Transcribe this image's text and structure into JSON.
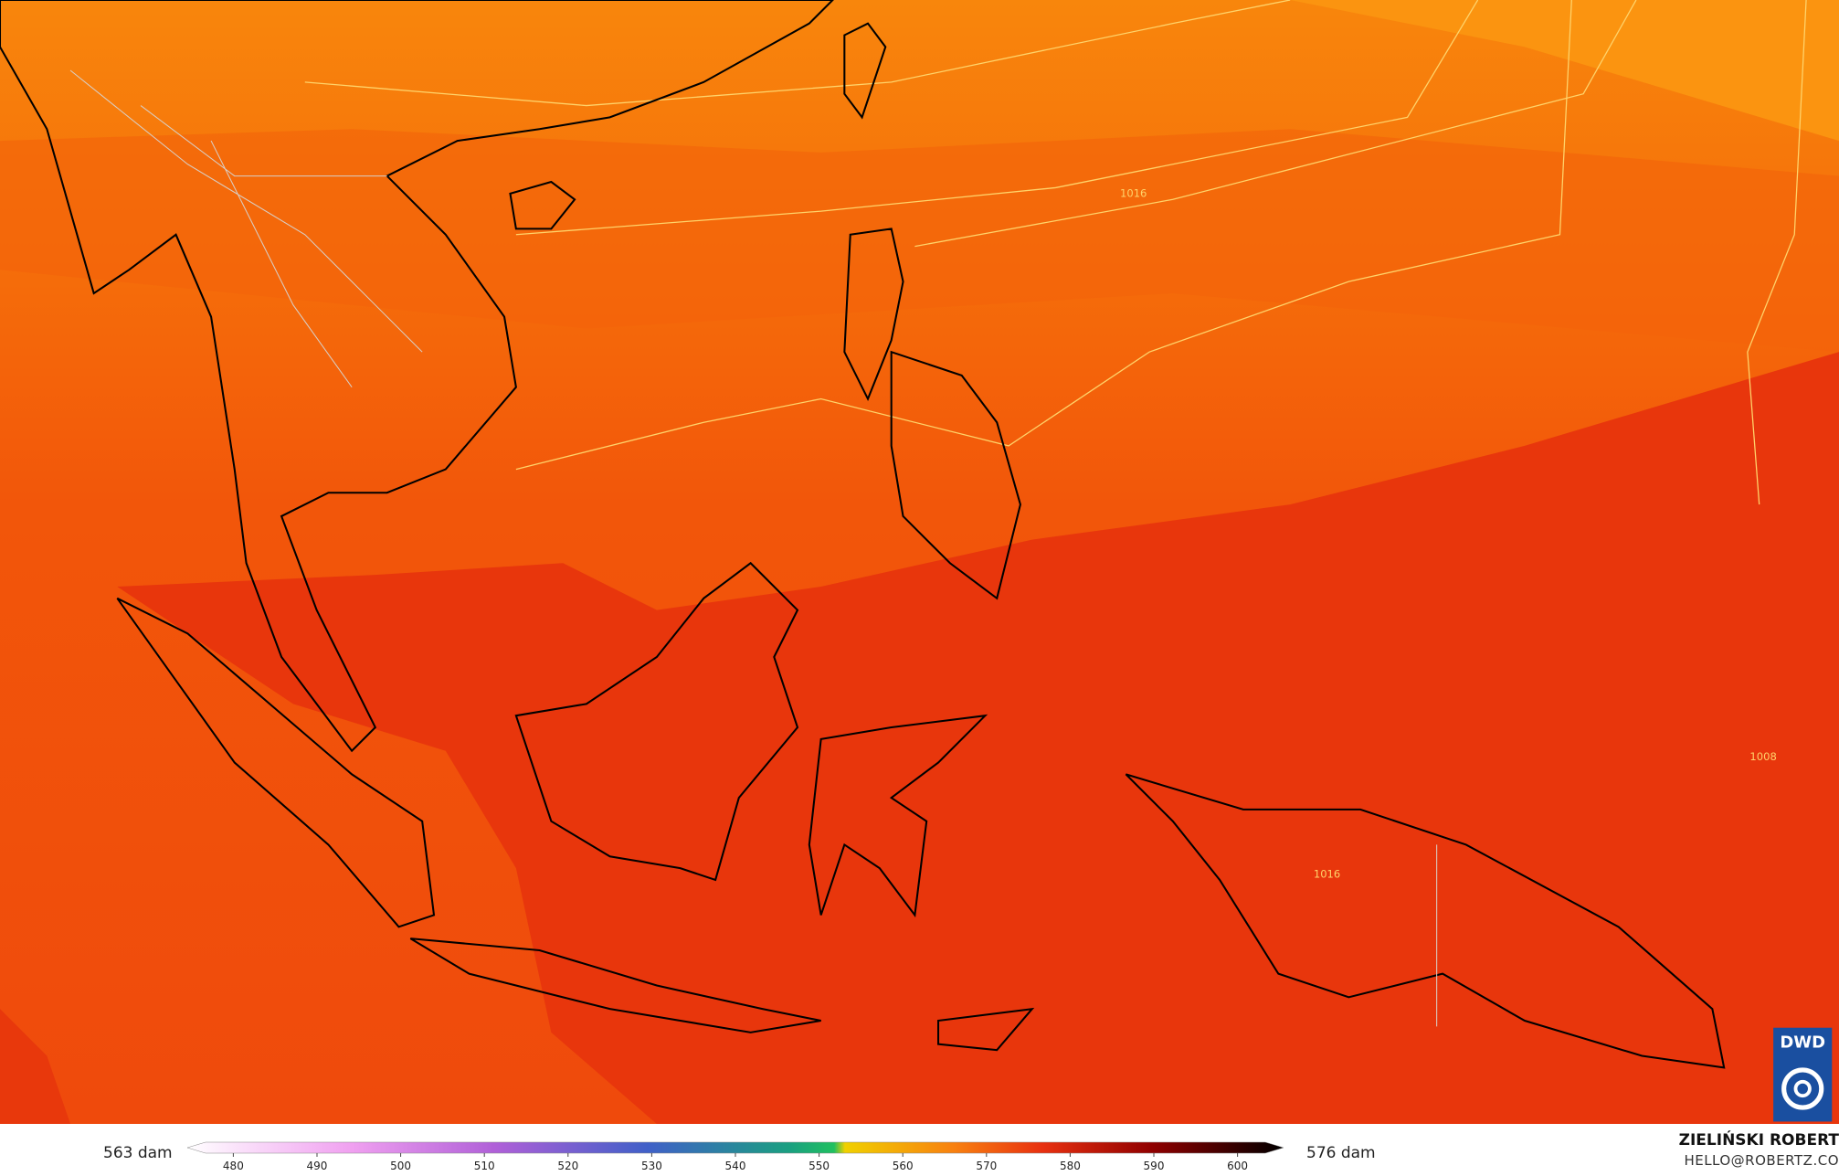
{
  "map": {
    "contour_labels": [
      "1016",
      "1016",
      "1008"
    ],
    "colorbar": {
      "range": [
        474.5,
        605.5
      ],
      "ticks": [
        480,
        490,
        500,
        510,
        520,
        530,
        540,
        550,
        560,
        570,
        580,
        590,
        600
      ]
    },
    "min_label": "563 dam",
    "max_label": "576 dam",
    "author": "ZIELIŃSKI ROBERT",
    "email": "HELLO@ROBERTZ.CO",
    "logo": "DWD"
  }
}
